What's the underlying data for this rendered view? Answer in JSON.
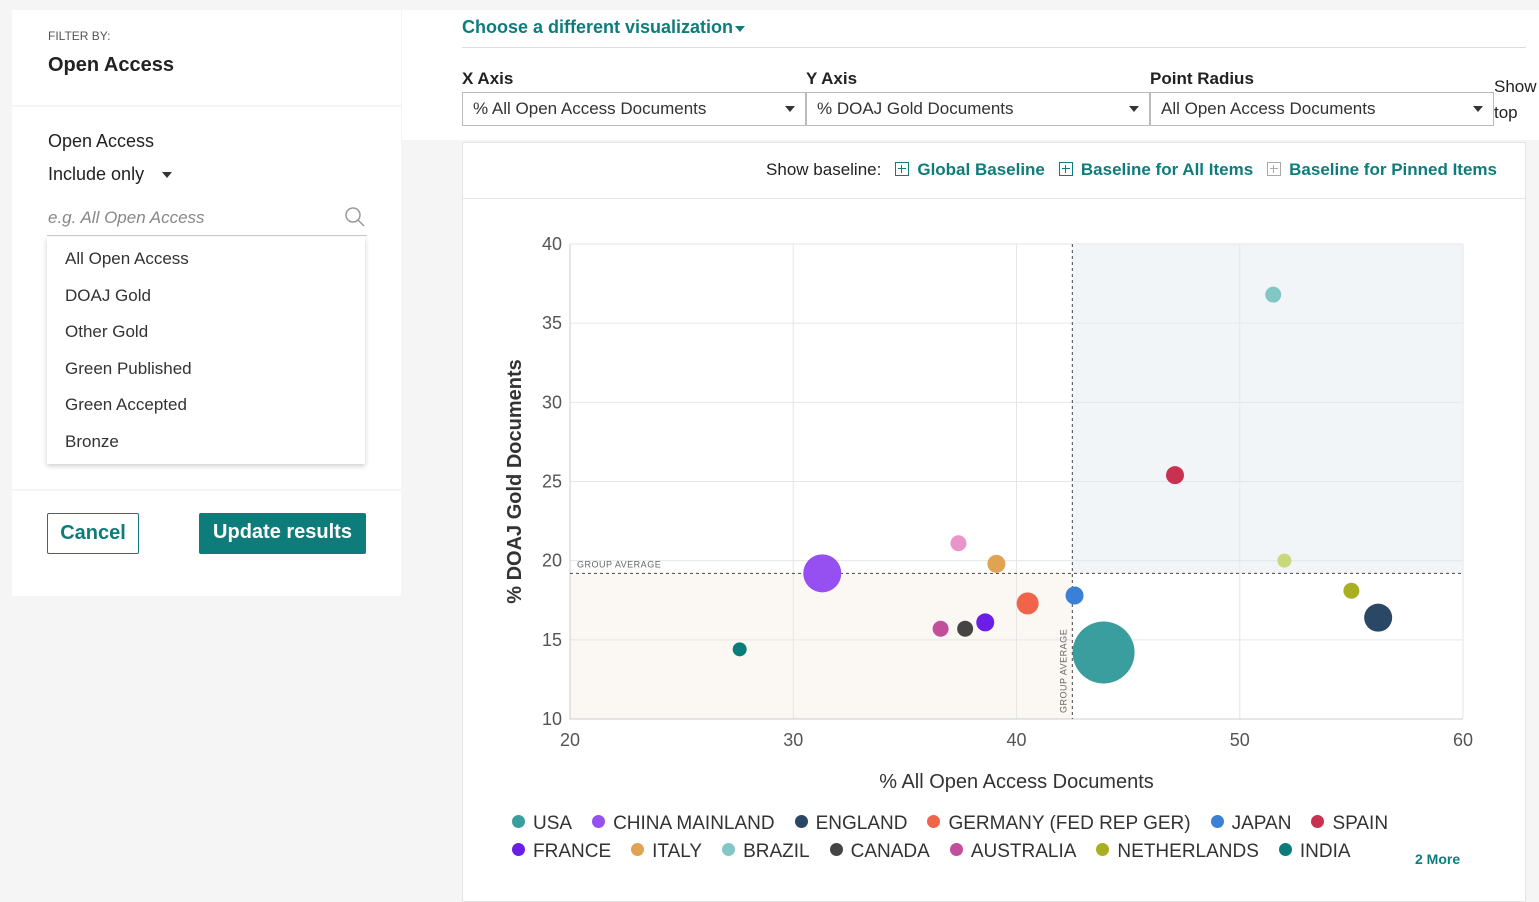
{
  "filter": {
    "heading": "FILTER BY:",
    "title": "Open Access",
    "label": "Open Access",
    "mode": "Include only",
    "placeholder": "e.g. All Open Access",
    "options": [
      "All Open Access",
      "DOAJ Gold",
      "Other Gold",
      "Green Published",
      "Green Accepted",
      "Bronze"
    ],
    "cancel": "Cancel",
    "update": "Update results"
  },
  "toolbar": {
    "visualization": "Choose a different visualization",
    "x_axis": {
      "label": "X Axis",
      "value": "% All Open Access Documents"
    },
    "y_axis": {
      "label": "Y Axis",
      "value": "% DOAJ Gold Documents"
    },
    "radius": {
      "label": "Point Radius",
      "value": "All Open Access Documents"
    },
    "show_top": "Show top"
  },
  "baseline": {
    "label": "Show baseline:",
    "options": [
      "Global Baseline",
      "Baseline for All Items",
      "Baseline for Pinned Items"
    ]
  },
  "chart_data": {
    "type": "scatter",
    "xlabel": "% All Open Access Documents",
    "ylabel": "% DOAJ Gold Documents",
    "xlim": [
      20,
      60
    ],
    "ylim": [
      10,
      40
    ],
    "xticks": [
      20,
      30,
      40,
      50,
      60
    ],
    "yticks": [
      10,
      15,
      20,
      25,
      30,
      35,
      40
    ],
    "grid": true,
    "x_average": 42.5,
    "y_average": 19.2,
    "average_label": "GROUP AVERAGE",
    "more": "2 More",
    "series": [
      {
        "name": "USA",
        "color": "#3a9e9e",
        "x": [
          43.9
        ],
        "values": [
          14.2
        ],
        "sizes": [
          31
        ]
      },
      {
        "name": "CHINA MAINLAND",
        "color": "#9650f2",
        "x": [
          31.3
        ],
        "values": [
          19.2
        ],
        "sizes": [
          19
        ]
      },
      {
        "name": "ENGLAND",
        "color": "#2b4766",
        "x": [
          56.2
        ],
        "values": [
          16.4
        ],
        "sizes": [
          14
        ]
      },
      {
        "name": "GERMANY (FED REP GER)",
        "color": "#f0654a",
        "x": [
          40.5
        ],
        "values": [
          17.3
        ],
        "sizes": [
          11
        ]
      },
      {
        "name": "JAPAN",
        "color": "#3a80d6",
        "x": [
          42.6
        ],
        "values": [
          17.8
        ],
        "sizes": [
          9
        ]
      },
      {
        "name": "SPAIN",
        "color": "#c8314f",
        "x": [
          47.1
        ],
        "values": [
          25.4
        ],
        "sizes": [
          9
        ]
      },
      {
        "name": "FRANCE",
        "color": "#6a1ee8",
        "x": [
          38.6
        ],
        "values": [
          16.1
        ],
        "sizes": [
          9
        ]
      },
      {
        "name": "ITALY",
        "color": "#e0a352",
        "x": [
          39.1
        ],
        "values": [
          19.8
        ],
        "sizes": [
          9
        ]
      },
      {
        "name": "BRAZIL",
        "color": "#82c6c6",
        "x": [
          51.5
        ],
        "values": [
          36.8
        ],
        "sizes": [
          8
        ]
      },
      {
        "name": "CANADA",
        "color": "#444444",
        "x": [
          37.7
        ],
        "values": [
          15.7
        ],
        "sizes": [
          8
        ]
      },
      {
        "name": "AUSTRALIA",
        "color": "#c24f9b",
        "x": [
          36.6
        ],
        "values": [
          15.7
        ],
        "sizes": [
          8
        ]
      },
      {
        "name": "NETHERLANDS",
        "color": "#a8b022",
        "x": [
          55.0
        ],
        "values": [
          18.1
        ],
        "sizes": [
          8
        ]
      },
      {
        "name": "INDIA",
        "color": "#0a7d7a",
        "x": [
          27.6
        ],
        "values": [
          14.4
        ],
        "sizes": [
          7
        ]
      },
      {
        "color": "#e994cb",
        "x": [
          37.4
        ],
        "values": [
          21.1
        ],
        "sizes": [
          8
        ]
      },
      {
        "color": "#c8d87a",
        "x": [
          52.0
        ],
        "values": [
          20.0
        ],
        "sizes": [
          7
        ]
      }
    ]
  }
}
